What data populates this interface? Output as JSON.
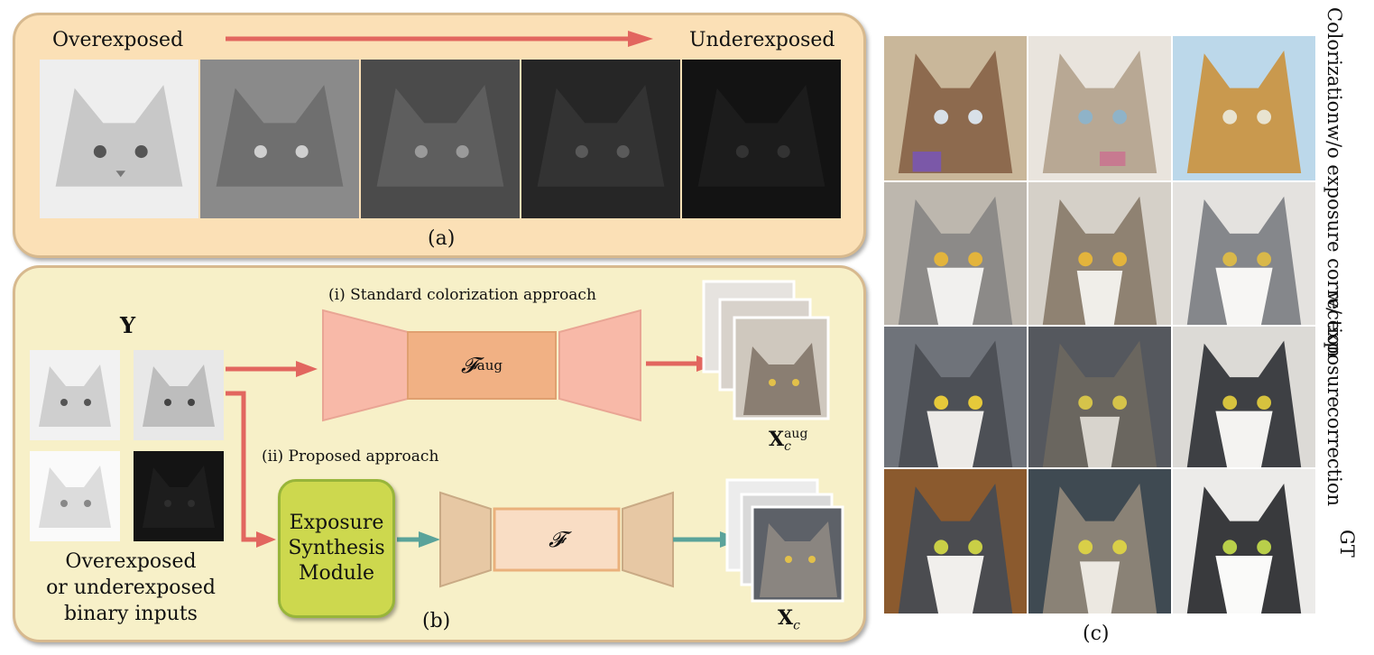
{
  "panel_a": {
    "left_label": "Overexposed",
    "right_label": "Underexposed",
    "caption": "(a)"
  },
  "panel_b": {
    "input_symbol": "Y",
    "input_caption_lines": [
      "Overexposed",
      "or underexposed",
      "binary inputs"
    ],
    "standard_label": "(i) Standard colorization approach",
    "proposed_label": "(ii) Proposed approach",
    "module_lines": [
      "Exposure",
      "Synthesis",
      "Module"
    ],
    "f_aug": {
      "base": "𝓕",
      "sup": "aug"
    },
    "f_plain": "𝓕",
    "out_aug": {
      "base": "X",
      "sub": "c",
      "sup": "aug"
    },
    "out_plain": {
      "base": "X",
      "sub": "c"
    },
    "caption": "(b)"
  },
  "panel_c": {
    "row_labels": {
      "without_lines": [
        "Colorization",
        "w/o exposure correction"
      ],
      "with_lines": [
        "w/ exposure",
        "correction"
      ],
      "gt": "GT"
    },
    "caption": "(c)"
  },
  "colors": {
    "red_arrow": "#e2665f",
    "teal_arrow": "#5aa39a",
    "pink_block": "#f8b9a8",
    "peach_block": "#f1b184",
    "tan_block": "#e7c8a4",
    "light_block": "#f9ddc4",
    "module_fill": "#cdd84e"
  }
}
